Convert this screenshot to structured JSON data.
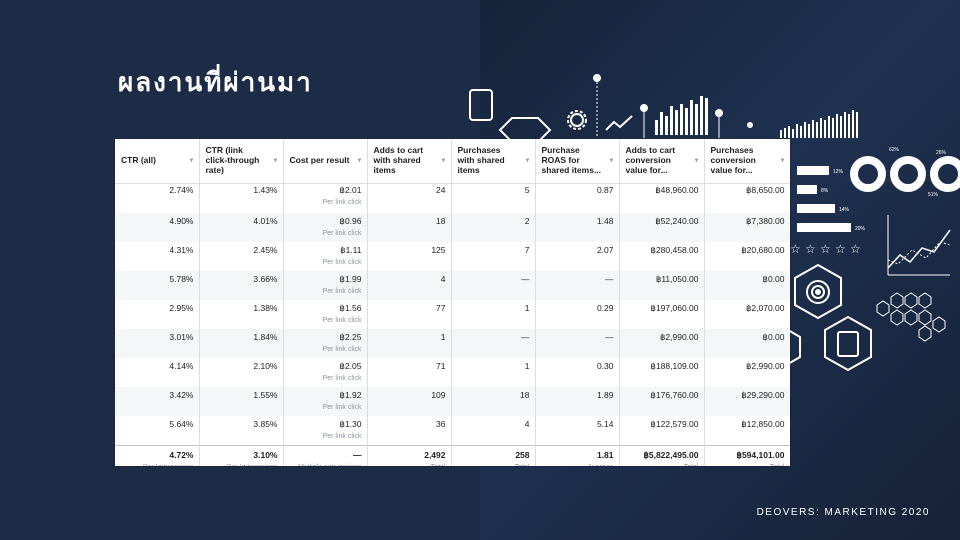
{
  "slide": {
    "title": "ผลงานที่ผ่านมา",
    "footer": "DEOVERS: MARKETING 2020"
  },
  "table": {
    "headers": [
      "CTR (all)",
      "CTR (link click-through rate)",
      "Cost per result",
      "Adds to cart with shared items",
      "Purchases with shared items",
      "Purchase ROAS for shared items...",
      "Adds to cart conversion value for...",
      "Purchases conversion value for..."
    ],
    "rows": [
      [
        "2.74%",
        "1.43%",
        "฿2.01",
        "24",
        "5",
        "0.87",
        "฿48,960.00",
        "฿8,650.00"
      ],
      [
        "4.90%",
        "4.01%",
        "฿0.96",
        "18",
        "2",
        "1.48",
        "฿52,240.00",
        "฿7,380.00"
      ],
      [
        "4.31%",
        "2.45%",
        "฿1.11",
        "125",
        "7",
        "2.07",
        "฿280,458.00",
        "฿20,680.00"
      ],
      [
        "5.78%",
        "3.66%",
        "฿1.99",
        "4",
        "—",
        "—",
        "฿11,050.00",
        "฿0.00"
      ],
      [
        "2.95%",
        "1.38%",
        "฿1.56",
        "77",
        "1",
        "0.29",
        "฿197,060.00",
        "฿2,070.00"
      ],
      [
        "3.01%",
        "1.84%",
        "฿2.25",
        "1",
        "—",
        "—",
        "฿2,990.00",
        "฿0.00"
      ],
      [
        "4.14%",
        "2.10%",
        "฿2.05",
        "71",
        "1",
        "0.30",
        "฿188,109.00",
        "฿2,990.00"
      ],
      [
        "3.42%",
        "1.55%",
        "฿1.92",
        "109",
        "18",
        "1.89",
        "฿176,760.00",
        "฿29,290.00"
      ],
      [
        "5.64%",
        "3.85%",
        "฿1.30",
        "36",
        "4",
        "5.14",
        "฿122,579.00",
        "฿12,850.00"
      ]
    ],
    "cost_sub_label": "Per link click",
    "totals": [
      "4.72%",
      "3.10%",
      "—",
      "2,492",
      "258",
      "1.81",
      "฿5,822,495.00",
      "฿594,101.00"
    ],
    "totals_sub": [
      "Per Impressions",
      "Per Impressions",
      "Multiple conversions",
      "Total",
      "Total",
      "Average",
      "Total",
      "Total"
    ]
  },
  "decor": {
    "percent_labels": [
      "62%",
      "26%",
      "51%",
      "12%",
      "8%",
      "14%",
      "20%"
    ]
  }
}
